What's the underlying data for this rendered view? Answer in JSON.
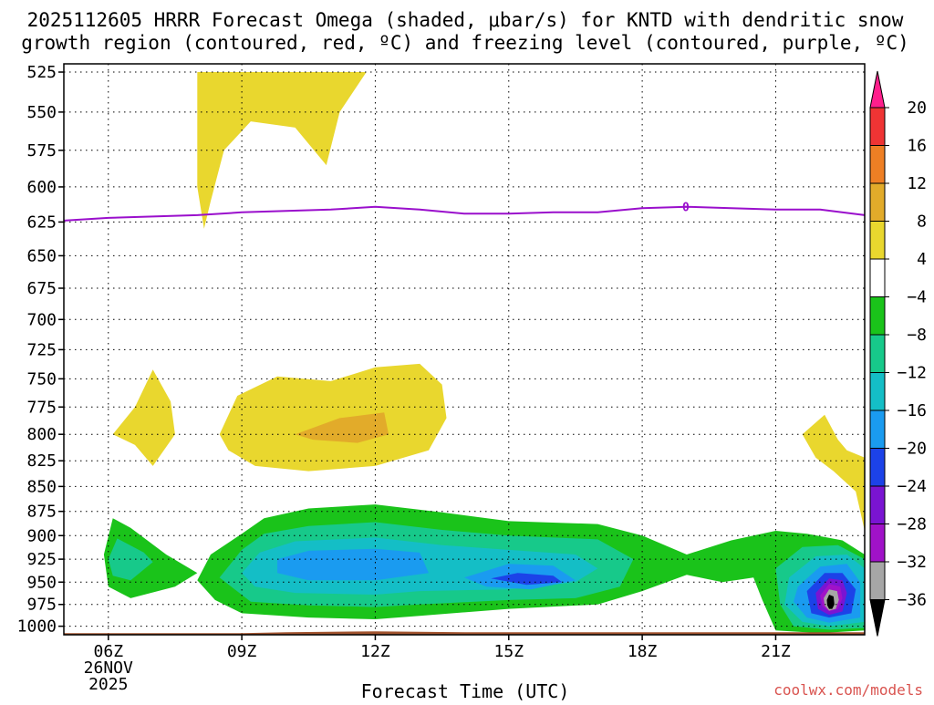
{
  "chart_data": {
    "type": "contour",
    "title_lines": [
      "2025112605 HRRR Forecast Omega (shaded, μbar/s) for KNTD with dendritic snow",
      "growth region (contoured, red, ºC) and freezing level (contoured, purple, ºC)"
    ],
    "xlabel": "Forecast Time (UTC)",
    "x_ticks": [
      {
        "hour": 6,
        "label": "06Z",
        "sub": [
          "26NOV",
          "2025"
        ]
      },
      {
        "hour": 9,
        "label": "09Z",
        "sub": []
      },
      {
        "hour": 12,
        "label": "12Z",
        "sub": []
      },
      {
        "hour": 15,
        "label": "15Z",
        "sub": []
      },
      {
        "hour": 18,
        "label": "18Z",
        "sub": []
      },
      {
        "hour": 21,
        "label": "21Z",
        "sub": []
      }
    ],
    "xlim": [
      5,
      23
    ],
    "y_ticks": [
      525,
      550,
      575,
      600,
      625,
      650,
      675,
      700,
      725,
      750,
      775,
      800,
      825,
      850,
      875,
      900,
      925,
      950,
      975,
      1000
    ],
    "ylim_hPa": [
      520,
      1010
    ],
    "colorbar": {
      "labels": [
        "20",
        "16",
        "12",
        "8",
        "4",
        "−4",
        "−8",
        "−12",
        "−16",
        "−20",
        "−24",
        "−28",
        "−32",
        "−36"
      ],
      "colors": [
        "#ff1f8c",
        "#ef3434",
        "#ee7f24",
        "#e2ab2a",
        "#e9d72e",
        "#ffffff",
        "#1ac31a",
        "#17c98a",
        "#14bec6",
        "#1a9bf0",
        "#1c42e8",
        "#7a14d2",
        "#a012c8",
        "#a6a6a6",
        "#000000"
      ]
    },
    "freezing_level": {
      "label": "0",
      "color": "#9a0fcc",
      "points": [
        [
          5,
          624
        ],
        [
          6,
          622
        ],
        [
          7,
          621
        ],
        [
          8,
          620
        ],
        [
          9,
          618
        ],
        [
          10,
          617
        ],
        [
          11,
          616
        ],
        [
          12,
          614
        ],
        [
          13,
          616
        ],
        [
          14,
          619
        ],
        [
          15,
          619
        ],
        [
          16,
          618
        ],
        [
          17,
          618
        ],
        [
          18,
          615
        ],
        [
          19,
          614
        ],
        [
          20,
          615
        ],
        [
          21,
          616
        ],
        [
          22,
          616
        ],
        [
          23,
          620
        ]
      ]
    },
    "omega_regions": [
      {
        "name": "positive-4-upper",
        "level": 4,
        "points": [
          [
            8.0,
            525
          ],
          [
            11.8,
            525
          ],
          [
            11.2,
            550
          ],
          [
            10.9,
            585
          ],
          [
            10.2,
            560
          ],
          [
            9.2,
            556
          ],
          [
            8.6,
            575
          ],
          [
            8.3,
            610
          ],
          [
            8.15,
            630
          ],
          [
            8.0,
            600
          ]
        ]
      },
      {
        "name": "positive-4-left",
        "level": 4,
        "points": [
          [
            6.1,
            800
          ],
          [
            6.6,
            775
          ],
          [
            7.0,
            742
          ],
          [
            7.4,
            770
          ],
          [
            7.5,
            800
          ],
          [
            7.0,
            830
          ],
          [
            6.6,
            810
          ]
        ]
      },
      {
        "name": "positive-4-center",
        "level": 4,
        "points": [
          [
            8.5,
            800
          ],
          [
            8.9,
            765
          ],
          [
            9.8,
            748
          ],
          [
            11.0,
            752
          ],
          [
            12.0,
            740
          ],
          [
            13.0,
            737
          ],
          [
            13.5,
            755
          ],
          [
            13.6,
            785
          ],
          [
            13.2,
            815
          ],
          [
            12.0,
            830
          ],
          [
            10.5,
            835
          ],
          [
            9.3,
            830
          ],
          [
            8.7,
            815
          ]
        ]
      },
      {
        "name": "positive-8-center",
        "level": 8,
        "points": [
          [
            10.2,
            800
          ],
          [
            11.2,
            785
          ],
          [
            12.2,
            780
          ],
          [
            12.3,
            800
          ],
          [
            11.6,
            808
          ],
          [
            10.6,
            805
          ]
        ]
      },
      {
        "name": "positive-4-right",
        "level": 4,
        "points": [
          [
            21.6,
            800
          ],
          [
            22.1,
            782
          ],
          [
            22.4,
            805
          ],
          [
            22.6,
            815
          ],
          [
            23.0,
            822
          ],
          [
            23.0,
            895
          ],
          [
            22.8,
            855
          ],
          [
            22.3,
            835
          ],
          [
            21.9,
            822
          ]
        ]
      },
      {
        "name": "negative-4-left",
        "level": -4,
        "points": [
          [
            5.9,
            920
          ],
          [
            6.1,
            882
          ],
          [
            6.5,
            892
          ],
          [
            7.3,
            920
          ],
          [
            8.0,
            940
          ],
          [
            7.5,
            955
          ],
          [
            6.5,
            968
          ],
          [
            6.0,
            955
          ]
        ]
      },
      {
        "name": "negative-4-main",
        "level": -4,
        "points": [
          [
            8.0,
            948
          ],
          [
            8.3,
            920
          ],
          [
            9.0,
            898
          ],
          [
            9.5,
            882
          ],
          [
            10.5,
            872
          ],
          [
            12.0,
            868
          ],
          [
            13.5,
            876
          ],
          [
            15.0,
            885
          ],
          [
            17.0,
            888
          ],
          [
            18.0,
            900
          ],
          [
            19.0,
            920
          ],
          [
            20.0,
            905
          ],
          [
            21.0,
            895
          ],
          [
            21.7,
            898
          ],
          [
            22.5,
            905
          ],
          [
            23.0,
            920
          ],
          [
            23.0,
            1005
          ],
          [
            22.0,
            1008
          ],
          [
            21.0,
            1005
          ],
          [
            20.7,
            970
          ],
          [
            20.5,
            945
          ],
          [
            19.8,
            950
          ],
          [
            19.0,
            942
          ],
          [
            18.0,
            960
          ],
          [
            17.0,
            975
          ],
          [
            15.0,
            980
          ],
          [
            13.0,
            988
          ],
          [
            12.0,
            992
          ],
          [
            10.5,
            990
          ],
          [
            9.0,
            985
          ],
          [
            8.4,
            970
          ]
        ]
      },
      {
        "name": "negative-8-left",
        "level": -8,
        "points": [
          [
            6.0,
            925
          ],
          [
            6.2,
            903
          ],
          [
            6.8,
            918
          ],
          [
            7.0,
            928
          ],
          [
            6.5,
            948
          ],
          [
            6.1,
            943
          ]
        ]
      },
      {
        "name": "negative-8-main",
        "level": -8,
        "points": [
          [
            8.5,
            945
          ],
          [
            9.0,
            915
          ],
          [
            9.5,
            898
          ],
          [
            10.5,
            890
          ],
          [
            12.0,
            886
          ],
          [
            13.5,
            894
          ],
          [
            15.0,
            900
          ],
          [
            17.0,
            904
          ],
          [
            17.8,
            925
          ],
          [
            17.5,
            955
          ],
          [
            16.5,
            968
          ],
          [
            15.0,
            970
          ],
          [
            13.0,
            975
          ],
          [
            12.0,
            978
          ],
          [
            10.5,
            976
          ],
          [
            9.2,
            972
          ]
        ]
      },
      {
        "name": "negative-12-main",
        "level": -12,
        "points": [
          [
            9.0,
            940
          ],
          [
            9.4,
            918
          ],
          [
            10.2,
            906
          ],
          [
            12.0,
            902
          ],
          [
            13.5,
            910
          ],
          [
            15.0,
            915
          ],
          [
            16.5,
            920
          ],
          [
            17.0,
            935
          ],
          [
            16.5,
            950
          ],
          [
            15.0,
            958
          ],
          [
            13.0,
            960
          ],
          [
            12.0,
            964
          ],
          [
            10.2,
            962
          ],
          [
            9.3,
            955
          ]
        ]
      },
      {
        "name": "negative-16-main",
        "level": -16,
        "points": [
          [
            9.8,
            925
          ],
          [
            10.5,
            916
          ],
          [
            12.0,
            914
          ],
          [
            13.0,
            918
          ],
          [
            13.2,
            940
          ],
          [
            12.0,
            948
          ],
          [
            10.5,
            948
          ],
          [
            9.8,
            940
          ]
        ]
      },
      {
        "name": "negative-16-mid",
        "level": -16,
        "points": [
          [
            14.0,
            945
          ],
          [
            15.0,
            930
          ],
          [
            16.0,
            932
          ],
          [
            16.5,
            948
          ],
          [
            15.5,
            958
          ],
          [
            14.5,
            955
          ]
        ]
      },
      {
        "name": "negative-20-mid",
        "level": -20,
        "points": [
          [
            14.6,
            946
          ],
          [
            15.2,
            940
          ],
          [
            16.0,
            943
          ],
          [
            16.2,
            950
          ],
          [
            15.4,
            953
          ]
        ]
      },
      {
        "name": "negative-8-right",
        "level": -8,
        "points": [
          [
            21.0,
            935
          ],
          [
            21.6,
            912
          ],
          [
            22.4,
            910
          ],
          [
            23.0,
            925
          ],
          [
            23.0,
            1002
          ],
          [
            22.2,
            1004
          ],
          [
            21.4,
            1000
          ],
          [
            21.1,
            975
          ]
        ]
      },
      {
        "name": "negative-12-right",
        "level": -12,
        "points": [
          [
            21.3,
            945
          ],
          [
            21.9,
            922
          ],
          [
            22.6,
            920
          ],
          [
            23.0,
            935
          ],
          [
            23.0,
            995
          ],
          [
            22.2,
            1000
          ],
          [
            21.6,
            995
          ],
          [
            21.2,
            975
          ]
        ]
      },
      {
        "name": "negative-16-right",
        "level": -16,
        "points": [
          [
            21.5,
            955
          ],
          [
            22.0,
            933
          ],
          [
            22.6,
            930
          ],
          [
            22.9,
            950
          ],
          [
            22.9,
            990
          ],
          [
            22.2,
            996
          ],
          [
            21.7,
            990
          ],
          [
            21.4,
            972
          ]
        ]
      },
      {
        "name": "negative-20-right",
        "level": -20,
        "points": [
          [
            21.7,
            960
          ],
          [
            22.1,
            940
          ],
          [
            22.5,
            940
          ],
          [
            22.8,
            958
          ],
          [
            22.7,
            985
          ],
          [
            22.2,
            990
          ],
          [
            21.8,
            985
          ]
        ]
      },
      {
        "name": "negative-24-right",
        "level": -24,
        "points": [
          [
            21.9,
            962
          ],
          [
            22.2,
            946
          ],
          [
            22.5,
            948
          ],
          [
            22.6,
            962
          ],
          [
            22.5,
            983
          ],
          [
            22.2,
            987
          ],
          [
            21.95,
            980
          ]
        ]
      },
      {
        "name": "negative-28-right",
        "level": -28,
        "points": [
          [
            22.0,
            965
          ],
          [
            22.2,
            952
          ],
          [
            22.45,
            955
          ],
          [
            22.5,
            968
          ],
          [
            22.4,
            980
          ],
          [
            22.2,
            983
          ],
          [
            22.05,
            977
          ]
        ]
      },
      {
        "name": "negative-32-right",
        "level": -32,
        "points": [
          [
            22.08,
            968
          ],
          [
            22.2,
            958
          ],
          [
            22.38,
            960
          ],
          [
            22.42,
            970
          ],
          [
            22.35,
            980
          ],
          [
            22.2,
            982
          ],
          [
            22.1,
            976
          ]
        ]
      },
      {
        "name": "negative-36-right",
        "level": -36,
        "points": [
          [
            22.15,
            970
          ],
          [
            22.2,
            964
          ],
          [
            22.3,
            966
          ],
          [
            22.32,
            975
          ],
          [
            22.27,
            980
          ],
          [
            22.2,
            980
          ],
          [
            22.16,
            976
          ]
        ]
      }
    ],
    "terrain": {
      "color": "#a0522d",
      "top_hPa": 1007
    }
  },
  "credit": "coolwx.com/models"
}
